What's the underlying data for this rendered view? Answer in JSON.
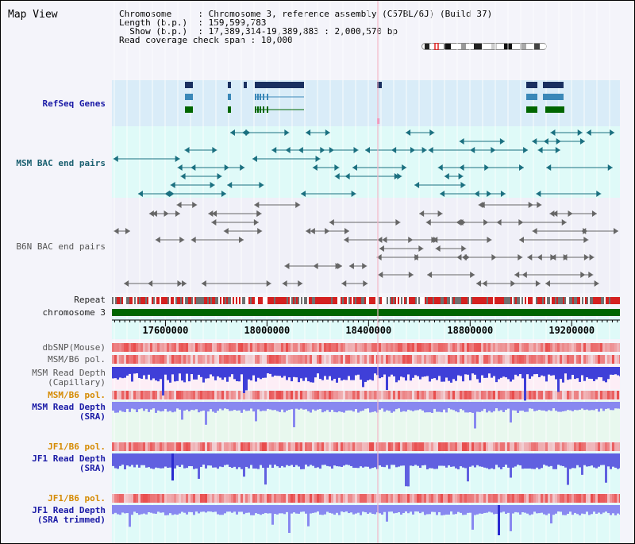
{
  "title": "Map View",
  "info": {
    "chromosome_key": "Chromosome",
    "chromosome_val": "Chromosome 3, reference assembly (C57BL/6J) (Build 37)",
    "length_key": "Length (b.p.)",
    "length_val": "159,599,783",
    "show_key": "Show (b.p.)",
    "show_val": "17,389,314-19,389,883 : 2,000,570 bp",
    "coverage_key": "Read coverage check span",
    "coverage_val": "10,000"
  },
  "tracks": {
    "refseq": "RefSeq Genes",
    "msm_bac": "MSM BAC end pairs",
    "b6n_bac": "B6N BAC end pairs",
    "repeat": "Repeat",
    "chromosome": "chromosome 3",
    "dbsnp": "dbSNP(Mouse)",
    "msm_pol_1": "MSM/B6 pol.",
    "msm_depth_cap_1": "MSM Read Depth",
    "msm_depth_cap_2": "(Capillary)",
    "msm_pol_2": "MSM/B6 pol.",
    "msm_depth_sra_1": "MSM Read Depth",
    "msm_depth_sra_2": "(SRA)",
    "jf1_pol_1": "JF1/B6 pol.",
    "jf1_depth_sra_1": "JF1 Read Depth",
    "jf1_depth_sra_2": "(SRA)",
    "jf1_pol_2": "JF1/B6 pol.",
    "jf1_depth_trim_1": "JF1 Read Depth",
    "jf1_depth_trim_2": "(SRA trimmed)"
  },
  "axis": {
    "start": 17389314,
    "end": 19389883,
    "ticks": [
      "17600000",
      "18000000",
      "18400000",
      "18800000",
      "19200000"
    ]
  },
  "colors": {
    "refseq_bg": "#d9ecf8",
    "msm_bg": "#dffaf8",
    "b6n_bg": "#f0f0f8",
    "depth_bar": "#3f3fd8",
    "depth_bar_light": "#8888f0",
    "pol_red": "#e84a4a",
    "chromosome_green": "#006600",
    "repeat_red": "#d42020",
    "repeat_grey": "#707070",
    "gene_navy": "#1a3060",
    "gene_blue": "#3a88b8",
    "gene_green": "#006600"
  }
}
